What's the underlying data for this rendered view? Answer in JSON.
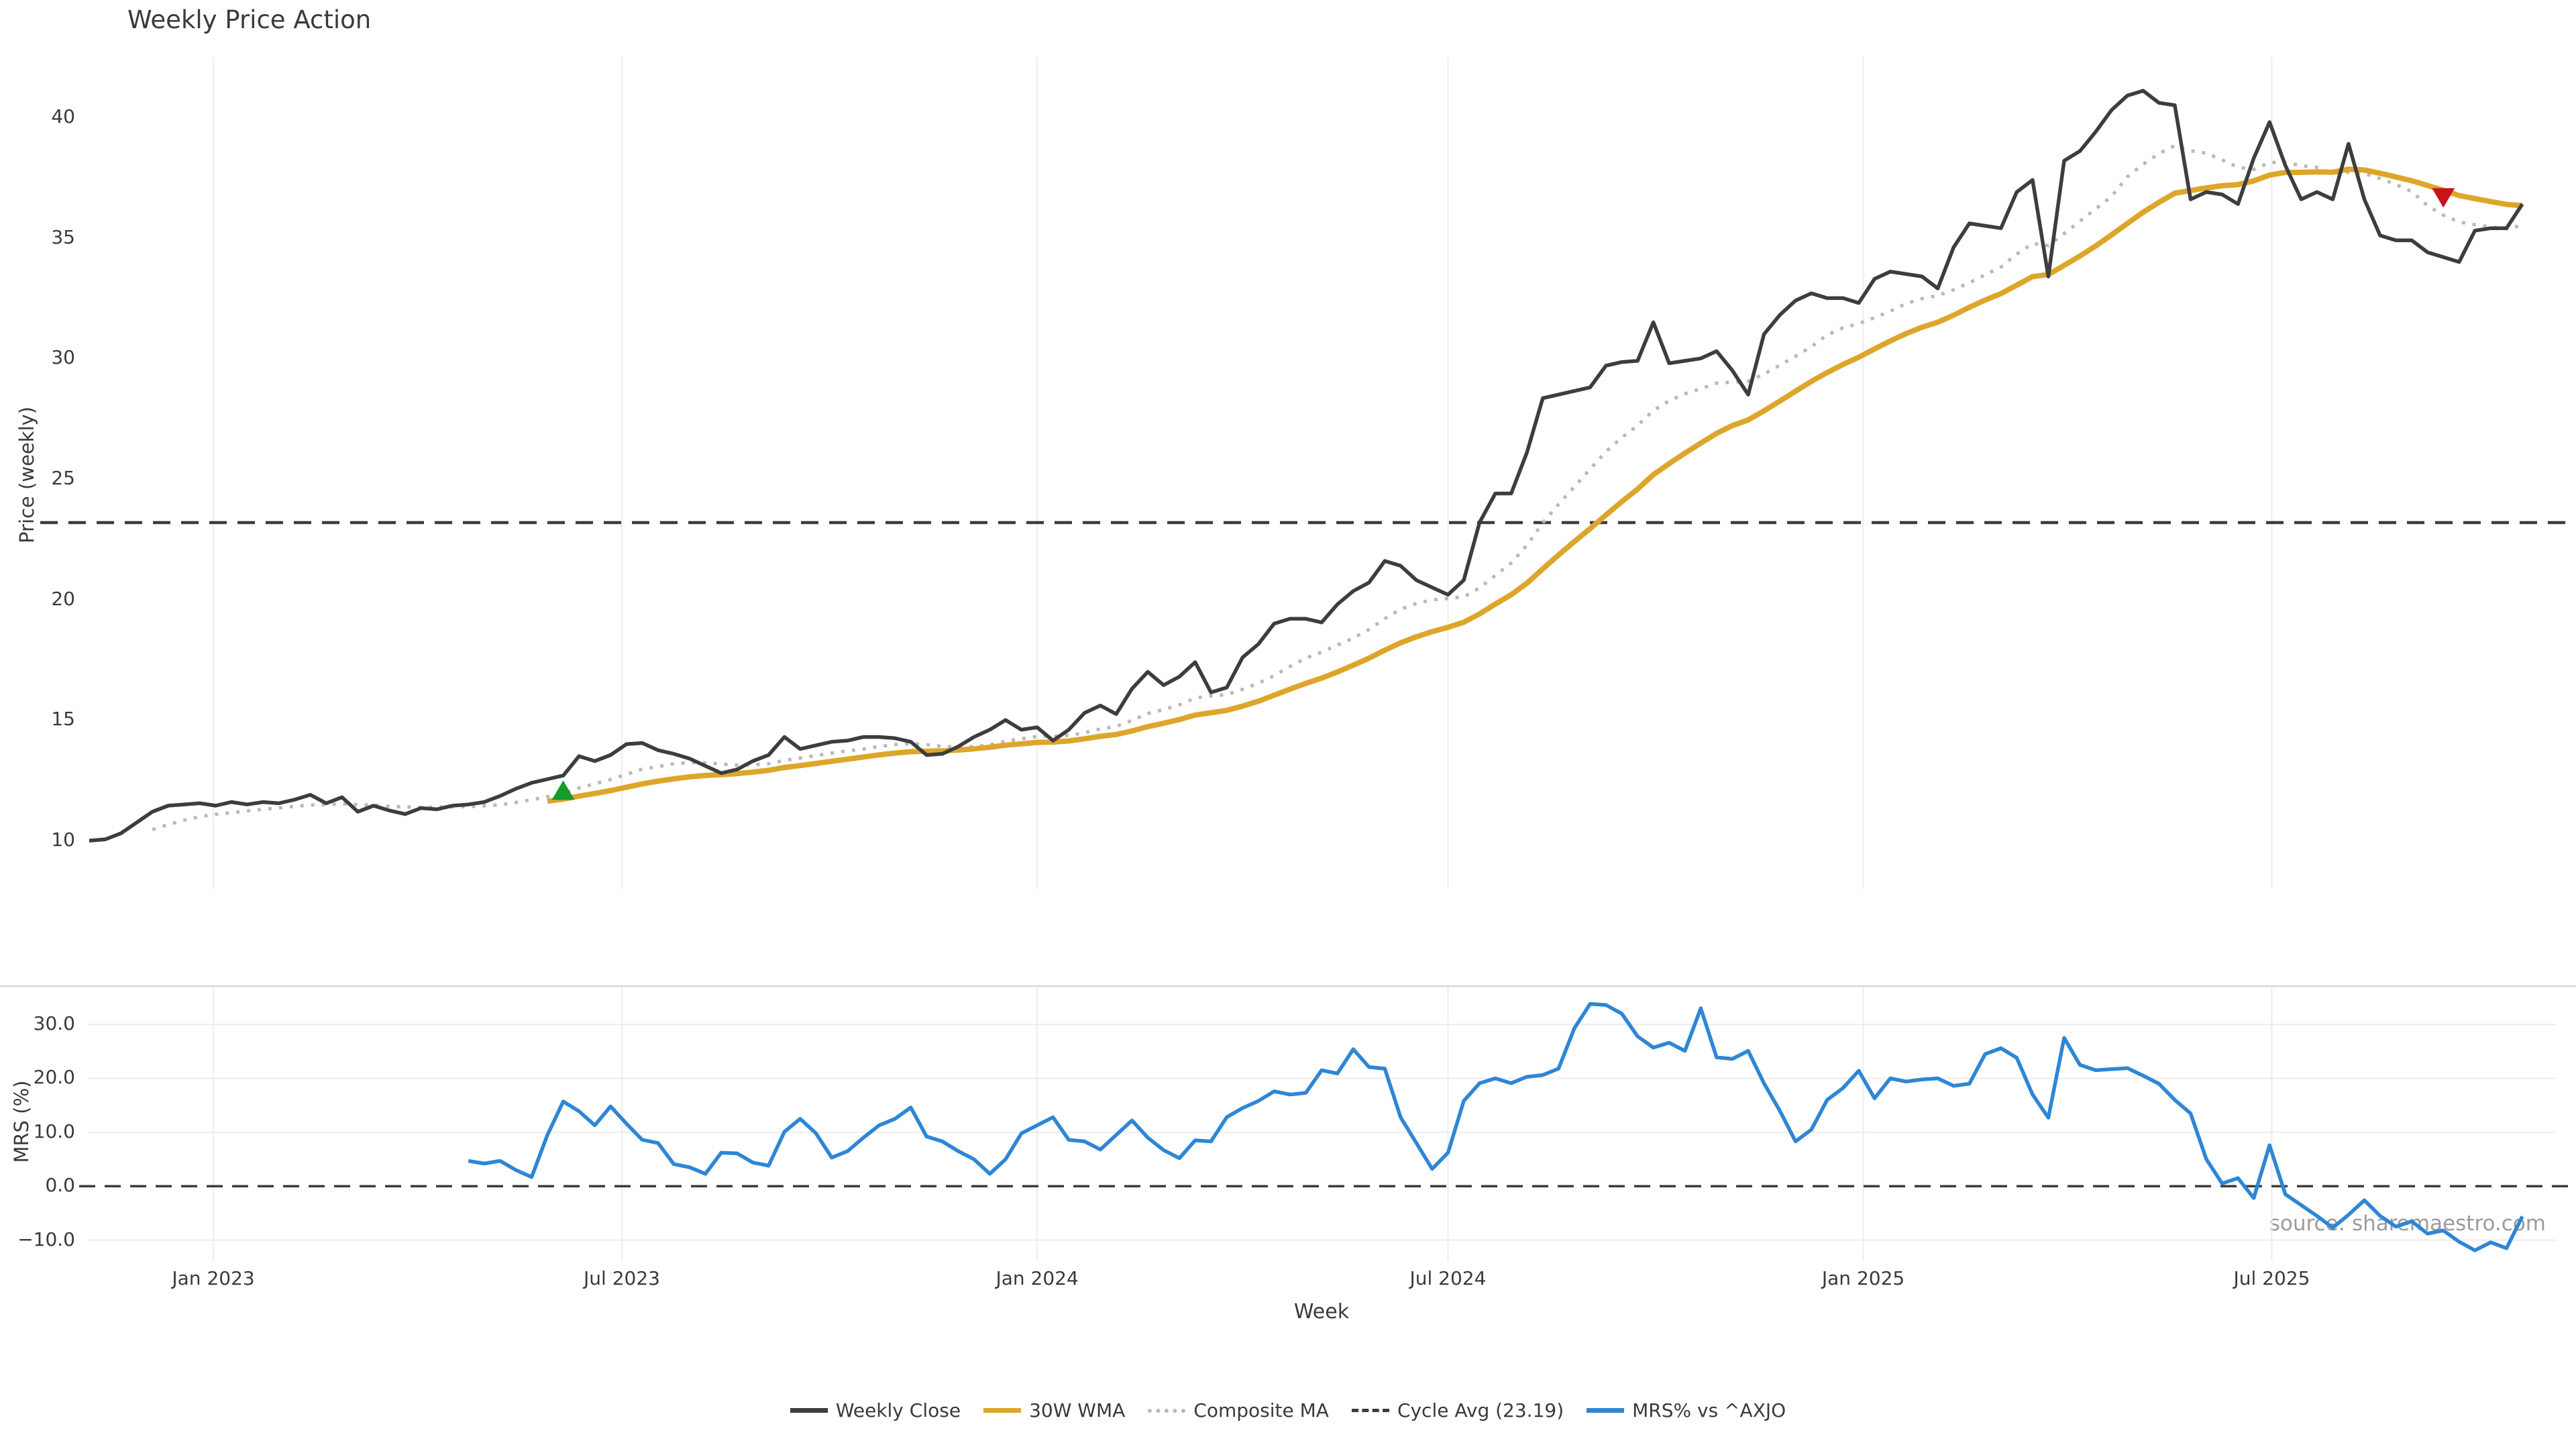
{
  "title": "Weekly Price Action",
  "watermark": "source: sharemaestro.com",
  "colors": {
    "weekly_close": "#3d3d3d",
    "wma_30w": "#dda62b",
    "composite_ma": "#b9b9b9",
    "cycle_avg": "#3c3c3c",
    "mrs": "#2e86d5",
    "buy_marker": "#149b2c",
    "sell_marker": "#c6131c",
    "grid": "#ededed",
    "panel_border": "#d8d8d8",
    "watermark_gray": "#9b9b9b"
  },
  "legend": [
    {
      "label": "Weekly Close",
      "color": "#3d3d3d",
      "style": "solid"
    },
    {
      "label": "30W WMA",
      "color": "#dda62b",
      "style": "solid"
    },
    {
      "label": "Composite MA",
      "color": "#b9b9b9",
      "style": "dotted"
    },
    {
      "label": "Cycle Avg (23.19)",
      "color": "#3c3c3c",
      "style": "dashed"
    },
    {
      "label": "MRS% vs ^AXJO",
      "color": "#2e86d5",
      "style": "solid"
    }
  ],
  "chart_data": [
    {
      "type": "line",
      "panel": "price",
      "title": "Weekly Price Action",
      "ylabel": "Price (weekly)",
      "xlabel": "Week",
      "x_start": "2022-11-07",
      "x_step_days": 7,
      "n_points": 155,
      "ylim": [
        8,
        42.5
      ],
      "grid": "vertical-only",
      "yticks": [
        10,
        15,
        20,
        25,
        30,
        35,
        40
      ],
      "ytick_labels": [
        "10",
        "15",
        "20",
        "25",
        "30",
        "35",
        "40"
      ],
      "xticks": [
        {
          "date": "2023-01-01",
          "label": "Jan 2023"
        },
        {
          "date": "2023-07-01",
          "label": "Jul 2023"
        },
        {
          "date": "2024-01-01",
          "label": "Jan 2024"
        },
        {
          "date": "2024-07-01",
          "label": "Jul 2024"
        },
        {
          "date": "2025-01-01",
          "label": "Jan 2025"
        },
        {
          "date": "2025-07-01",
          "label": "Jul 2025"
        }
      ],
      "cycle_avg": {
        "value": 23.19,
        "label": "Cycle Avg (23.19)"
      },
      "series": [
        {
          "name": "Weekly Close",
          "color": "#3d3d3d",
          "style": "solid",
          "values": [
            10.0,
            10.05,
            10.3,
            10.75,
            11.2,
            11.45,
            11.5,
            11.55,
            11.45,
            11.6,
            11.5,
            11.6,
            11.55,
            11.7,
            11.9,
            11.55,
            11.8,
            11.2,
            11.45,
            11.25,
            11.1,
            11.35,
            11.3,
            11.45,
            11.5,
            11.6,
            11.85,
            12.15,
            12.4,
            12.55,
            12.7,
            13.5,
            13.3,
            13.55,
            14.0,
            14.05,
            13.75,
            13.6,
            13.4,
            13.1,
            12.8,
            12.95,
            13.3,
            13.55,
            14.3,
            13.8,
            13.95,
            14.1,
            14.15,
            14.3,
            14.3,
            14.25,
            14.1,
            13.55,
            13.6,
            13.9,
            14.3,
            14.6,
            15.0,
            14.6,
            14.7,
            14.15,
            14.6,
            15.3,
            15.6,
            15.25,
            16.3,
            17.0,
            16.45,
            16.8,
            17.4,
            16.15,
            16.35,
            17.6,
            18.15,
            19.0,
            19.2,
            19.2,
            19.05,
            19.8,
            20.35,
            20.7,
            21.6,
            21.4,
            20.8,
            20.5,
            20.2,
            20.8,
            23.2,
            24.4,
            24.4,
            26.1,
            28.35,
            28.5,
            28.65,
            28.8,
            29.7,
            29.85,
            29.9,
            31.5,
            29.8,
            29.9,
            30.0,
            30.3,
            29.5,
            28.5,
            31.0,
            31.8,
            32.4,
            32.7,
            32.5,
            32.5,
            32.3,
            33.3,
            33.6,
            33.5,
            33.4,
            32.9,
            34.6,
            35.6,
            35.5,
            35.4,
            36.9,
            37.4,
            33.4,
            38.2,
            38.6,
            39.4,
            40.3,
            40.9,
            41.1,
            40.6,
            40.5,
            36.6,
            36.9,
            36.8,
            36.4,
            38.3,
            39.8,
            38.0,
            36.6,
            36.9,
            36.6,
            38.9,
            36.6,
            35.1,
            34.9,
            34.9,
            34.4,
            34.2,
            34.0,
            35.3,
            35.4,
            35.4,
            36.4
          ]
        },
        {
          "name": "30W WMA",
          "color": "#dda62b",
          "style": "solid",
          "derived_from": "Weekly Close",
          "derivation": "linearly-weighted moving average, 30-week window, plotted from week 30"
        },
        {
          "name": "Composite MA",
          "color": "#b9b9b9",
          "style": "dotted",
          "derived_from": "Weekly Close",
          "derivation": "mean of SMA5, SMA10 and SMA20 (expanding windows at start), plotted from week 5"
        },
        {
          "name": "Cycle Avg",
          "style": "dashed-horizontal-line",
          "color": "#3c3c3c",
          "value": 23.19
        }
      ],
      "markers": [
        {
          "kind": "buy-triangle-up",
          "date": "2023-06-05",
          "price": 12.05,
          "color": "#149b2c"
        },
        {
          "kind": "sell-triangle-down",
          "date": "2025-09-15",
          "price": 36.7,
          "color": "#c6131c"
        }
      ]
    },
    {
      "type": "line",
      "panel": "oscillator",
      "ylabel": "MRS (%)",
      "xlabel": "Week",
      "ylim": [
        -13.9,
        37.1
      ],
      "grid": "both",
      "yticks": [
        30,
        20,
        10,
        0,
        -10
      ],
      "ytick_labels": [
        "30.0",
        "20.0",
        "10.0",
        "0.0",
        "−10.0"
      ],
      "zero_line": {
        "value": 0.0,
        "style": "dashed",
        "color": "#3c3c3c"
      },
      "start_index": 24,
      "series": [
        {
          "name": "MRS% vs ^AXJO",
          "color": "#2e86d5",
          "style": "solid",
          "values": [
            4.7,
            4.2,
            4.7,
            3.0,
            1.7,
            9.5,
            15.7,
            13.9,
            11.3,
            14.8,
            11.6,
            8.6,
            8.0,
            4.1,
            3.5,
            2.3,
            6.2,
            6.1,
            4.4,
            3.8,
            10.1,
            12.5,
            9.8,
            5.3,
            6.5,
            9.0,
            11.3,
            12.5,
            14.6,
            9.2,
            8.3,
            6.5,
            5.0,
            2.3,
            5.0,
            9.8,
            11.3,
            12.8,
            8.6,
            8.3,
            6.8,
            9.5,
            12.2,
            9.0,
            6.7,
            5.2,
            8.5,
            8.3,
            12.8,
            14.5,
            15.8,
            17.6,
            17.0,
            17.3,
            21.5,
            20.9,
            25.4,
            22.1,
            21.8,
            12.8,
            8.0,
            3.2,
            6.2,
            15.8,
            19.1,
            20.0,
            19.1,
            20.3,
            20.6,
            21.8,
            29.3,
            33.8,
            33.6,
            32.0,
            27.8,
            25.7,
            26.6,
            25.1,
            33.0,
            23.9,
            23.6,
            25.1,
            19.1,
            14.0,
            8.3,
            10.5,
            16.0,
            18.2,
            21.4,
            16.3,
            20.0,
            19.4,
            19.8,
            20.0,
            18.6,
            19.0,
            24.5,
            25.6,
            23.8,
            17.0,
            12.7,
            27.5,
            22.5,
            21.5,
            21.7,
            21.9,
            20.5,
            19.0,
            16.0,
            13.5,
            5.0,
            0.5,
            1.5,
            -2.2,
            7.6,
            -1.5,
            -3.5,
            -5.5,
            -7.7,
            -5.3,
            -2.6,
            -5.5,
            -7.5,
            -6.5,
            -8.8,
            -8.2,
            -10.3,
            -11.9,
            -10.4,
            -11.5,
            -5.6
          ]
        }
      ]
    }
  ]
}
